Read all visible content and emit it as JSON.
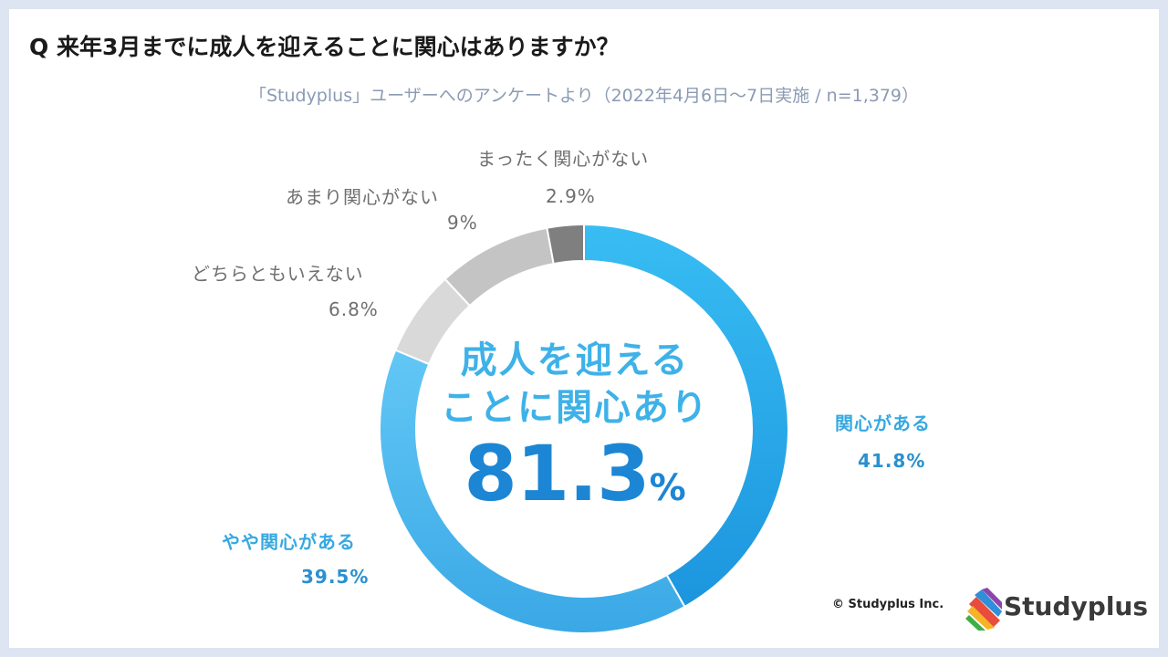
{
  "header": {
    "question": "Q 来年3月までに成人を迎えることに関心はありますか？",
    "subtitle": "「Studyplus」ユーザーへのアンケートより（2022年4月6日〜7日実施 / n=1,379）"
  },
  "center": {
    "line1": "成人を迎える",
    "line2": "ことに関心あり",
    "value": "81.3",
    "unit": "%"
  },
  "footer": {
    "copyright": "© Studyplus Inc.",
    "logo_text": "Studyplus"
  },
  "colors": {
    "kanshin_ga_aru": "#2fb0ec",
    "yaya_kanshin": "#5cc1f0",
    "dochira": "#d9d9d9",
    "amari": "#c4c4c4",
    "mattaku": "#7f7f7f",
    "background": "#dde5f2"
  },
  "chart_data": {
    "type": "pie",
    "slices": [
      {
        "name": "関心がある",
        "value": 41.8,
        "label": "41.8%"
      },
      {
        "name": "やや関心がある",
        "value": 39.5,
        "label": "39.5%"
      },
      {
        "name": "どちらともいえない",
        "value": 6.8,
        "label": "6.8%"
      },
      {
        "name": "あまり関心がない",
        "value": 9,
        "label": "9%"
      },
      {
        "name": "まったく関心がない",
        "value": 2.9,
        "label": "2.9%"
      }
    ],
    "title": "Q 来年3月までに成人を迎えることに関心はありますか？",
    "donut": true
  }
}
